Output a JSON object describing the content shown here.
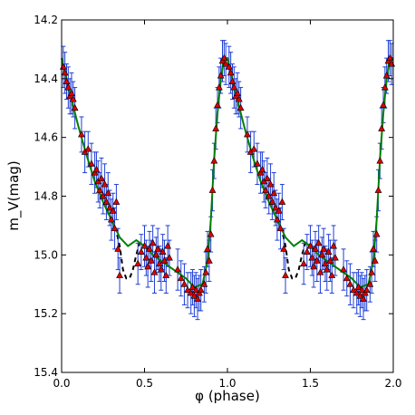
{
  "chart_data": {
    "type": "scatter",
    "title": "",
    "xlabel": "φ (phase)",
    "ylabel": "m_V(mag)",
    "xlim": [
      0.0,
      2.0
    ],
    "ylim": [
      15.4,
      14.2
    ],
    "y_inverted": true,
    "grid": false,
    "x_ticks": [
      "0.0",
      "0.5",
      "1.0",
      "1.5",
      "2.0"
    ],
    "x_tick_values": [
      0.0,
      0.5,
      1.0,
      1.5,
      2.0
    ],
    "y_ticks": [
      "14.2",
      "14.4",
      "14.6",
      "14.8",
      "15.0",
      "15.2",
      "15.4"
    ],
    "y_tick_values": [
      14.2,
      14.4,
      14.6,
      14.8,
      15.0,
      15.2,
      15.4
    ],
    "colors": {
      "marker_fill": "#dd0000",
      "marker_edge": "#000000",
      "errorbar": "#1f3fd6",
      "fit_solid": "#008000",
      "fit_dashed": "#000000"
    },
    "series": [
      {
        "kind": "fit_line_solid",
        "x": [
          0.0,
          0.05,
          0.1,
          0.15,
          0.2,
          0.25,
          0.3,
          0.35,
          0.4,
          0.45,
          0.5,
          0.55,
          0.6,
          0.65,
          0.7,
          0.75,
          0.8,
          0.85,
          0.88,
          0.9,
          0.92,
          0.94,
          0.96,
          0.98,
          1.0,
          1.05,
          1.1,
          1.15,
          1.2,
          1.25,
          1.3,
          1.35,
          1.4,
          1.45,
          1.5,
          1.55,
          1.6,
          1.65,
          1.7,
          1.75,
          1.8,
          1.85,
          1.88,
          1.9,
          1.92,
          1.94,
          1.96,
          1.98,
          2.0
        ],
        "y": [
          14.33,
          14.45,
          14.56,
          14.66,
          14.75,
          14.82,
          14.88,
          14.94,
          14.97,
          14.95,
          14.97,
          15.0,
          15.02,
          15.04,
          15.06,
          15.08,
          15.11,
          15.1,
          15.02,
          14.88,
          14.67,
          14.52,
          14.4,
          14.33,
          14.33,
          14.45,
          14.56,
          14.66,
          14.75,
          14.82,
          14.88,
          14.94,
          14.97,
          14.95,
          14.97,
          15.0,
          15.02,
          15.04,
          15.06,
          15.08,
          15.11,
          15.1,
          15.02,
          14.88,
          14.67,
          14.52,
          14.4,
          14.33,
          14.33
        ]
      },
      {
        "kind": "fit_line_dashed",
        "segments": [
          {
            "x": [
              0.3,
              0.33,
              0.35,
              0.37,
              0.39,
              0.41,
              0.43,
              0.45,
              0.47,
              0.49
            ],
            "y": [
              14.88,
              14.92,
              14.97,
              15.05,
              15.08,
              15.08,
              15.05,
              15.0,
              14.96,
              14.95
            ]
          },
          {
            "x": [
              1.3,
              1.33,
              1.35,
              1.37,
              1.39,
              1.41,
              1.43,
              1.45,
              1.47,
              1.49
            ],
            "y": [
              14.88,
              14.92,
              14.97,
              15.05,
              15.08,
              15.08,
              15.05,
              15.0,
              14.96,
              14.95
            ]
          }
        ]
      },
      {
        "kind": "observations",
        "x": [
          0.01,
          0.02,
          0.03,
          0.04,
          0.05,
          0.06,
          0.07,
          0.08,
          0.12,
          0.14,
          0.16,
          0.18,
          0.2,
          0.21,
          0.22,
          0.23,
          0.24,
          0.25,
          0.26,
          0.27,
          0.28,
          0.29,
          0.3,
          0.31,
          0.32,
          0.33,
          0.34,
          0.35,
          0.46,
          0.48,
          0.5,
          0.51,
          0.52,
          0.53,
          0.54,
          0.55,
          0.56,
          0.57,
          0.58,
          0.59,
          0.6,
          0.61,
          0.62,
          0.63,
          0.64,
          0.65,
          0.7,
          0.72,
          0.74,
          0.76,
          0.78,
          0.79,
          0.8,
          0.81,
          0.82,
          0.83,
          0.84,
          0.86,
          0.87,
          0.88,
          0.89,
          0.9,
          0.91,
          0.92,
          0.93,
          0.94,
          0.95,
          0.96,
          0.97,
          0.98,
          0.99
        ],
        "y": [
          14.36,
          14.38,
          14.41,
          14.43,
          14.46,
          14.45,
          14.47,
          14.5,
          14.59,
          14.65,
          14.64,
          14.69,
          14.72,
          14.71,
          14.75,
          14.78,
          14.74,
          14.8,
          14.76,
          14.82,
          14.79,
          14.84,
          14.88,
          14.85,
          14.91,
          14.82,
          14.98,
          15.07,
          15.03,
          14.99,
          14.97,
          15.01,
          15.04,
          14.98,
          15.02,
          14.96,
          15.06,
          15.0,
          14.98,
          15.03,
          15.05,
          14.99,
          15.02,
          15.07,
          14.97,
          15.01,
          15.05,
          15.08,
          15.1,
          15.12,
          15.13,
          15.11,
          15.14,
          15.12,
          15.15,
          15.13,
          15.12,
          15.1,
          15.06,
          14.98,
          15.02,
          14.93,
          14.78,
          14.68,
          14.57,
          14.49,
          14.43,
          14.39,
          14.34,
          14.33,
          14.35
        ],
        "yerr": [
          0.07,
          0.07,
          0.06,
          0.07,
          0.06,
          0.07,
          0.06,
          0.07,
          0.06,
          0.07,
          0.06,
          0.07,
          0.07,
          0.06,
          0.07,
          0.06,
          0.07,
          0.06,
          0.07,
          0.06,
          0.07,
          0.06,
          0.07,
          0.06,
          0.07,
          0.06,
          0.07,
          0.06,
          0.07,
          0.06,
          0.07,
          0.06,
          0.07,
          0.06,
          0.07,
          0.06,
          0.07,
          0.06,
          0.07,
          0.06,
          0.07,
          0.06,
          0.07,
          0.06,
          0.07,
          0.06,
          0.07,
          0.06,
          0.07,
          0.06,
          0.07,
          0.06,
          0.07,
          0.06,
          0.07,
          0.06,
          0.07,
          0.06,
          0.07,
          0.06,
          0.07,
          0.06,
          0.07,
          0.06,
          0.07,
          0.06,
          0.07,
          0.06,
          0.07,
          0.06,
          0.07
        ],
        "repeat_period": 1.0
      }
    ]
  }
}
